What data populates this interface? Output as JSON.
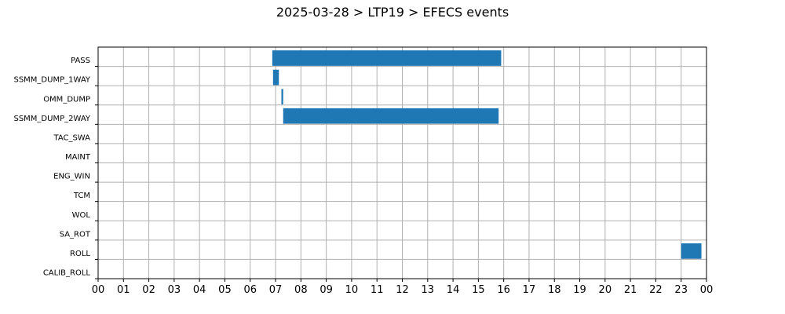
{
  "chart_data": {
    "type": "bar",
    "orientation": "horizontal-timeline",
    "title": "2025-03-28 > LTP19 > EFECS events",
    "xlabel": "",
    "ylabel": "",
    "categories": [
      "PASS",
      "SSMM_DUMP_1WAY",
      "OMM_DUMP",
      "SSMM_DUMP_2WAY",
      "TAC_SWA",
      "MAINT",
      "ENG_WIN",
      "TCM",
      "WOL",
      "SA_ROT",
      "ROLL",
      "CALIB_ROLL"
    ],
    "xlim": [
      0,
      24
    ],
    "x_tick_labels": [
      "00",
      "01",
      "02",
      "03",
      "04",
      "05",
      "06",
      "07",
      "08",
      "09",
      "10",
      "11",
      "12",
      "13",
      "14",
      "15",
      "16",
      "17",
      "18",
      "19",
      "20",
      "21",
      "22",
      "23",
      "00"
    ],
    "grid": true,
    "bar_color": "#1f77b4",
    "events": [
      {
        "category": "PASS",
        "start": 6.87,
        "end": 15.9
      },
      {
        "category": "SSMM_DUMP_1WAY",
        "start": 6.9,
        "end": 7.13
      },
      {
        "category": "OMM_DUMP",
        "start": 7.23,
        "end": 7.3
      },
      {
        "category": "SSMM_DUMP_2WAY",
        "start": 7.3,
        "end": 15.8
      },
      {
        "category": "ROLL",
        "start": 23.0,
        "end": 23.8
      }
    ]
  }
}
